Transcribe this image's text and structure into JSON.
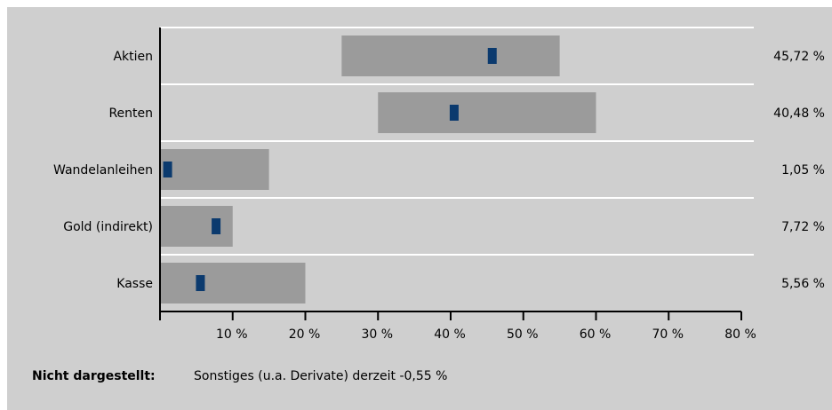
{
  "chart_data": {
    "type": "bar",
    "subtype": "range-band-with-marker",
    "categories": [
      "Aktien",
      "Renten",
      "Wandelanleihen",
      "Gold (indirekt)",
      "Kasse"
    ],
    "ranges": [
      [
        25,
        55
      ],
      [
        30,
        60
      ],
      [
        0,
        15
      ],
      [
        0,
        10
      ],
      [
        0,
        20
      ]
    ],
    "values": [
      45.72,
      40.48,
      1.05,
      7.72,
      5.56
    ],
    "value_labels": [
      "45,72 %",
      "40,48 %",
      "1,05 %",
      "7,72 %",
      "5,56 %"
    ],
    "xlim": [
      0,
      80
    ],
    "x_ticks": [
      10,
      20,
      30,
      40,
      50,
      60,
      70,
      80
    ],
    "x_tick_labels": [
      "10 %",
      "20 %",
      "30 %",
      "40 %",
      "50 %",
      "60 %",
      "70 %",
      "80 %"
    ],
    "grid": true,
    "colors": {
      "background": "#cfcfcf",
      "band": "#9b9b9b",
      "marker": "#0b3a6e",
      "grid": "#ffffff",
      "axis": "#000000"
    }
  },
  "footnote": {
    "label": "Nicht dargestellt:",
    "text": "Sonstiges (u.a. Derivate) derzeit  -0,55 %"
  }
}
